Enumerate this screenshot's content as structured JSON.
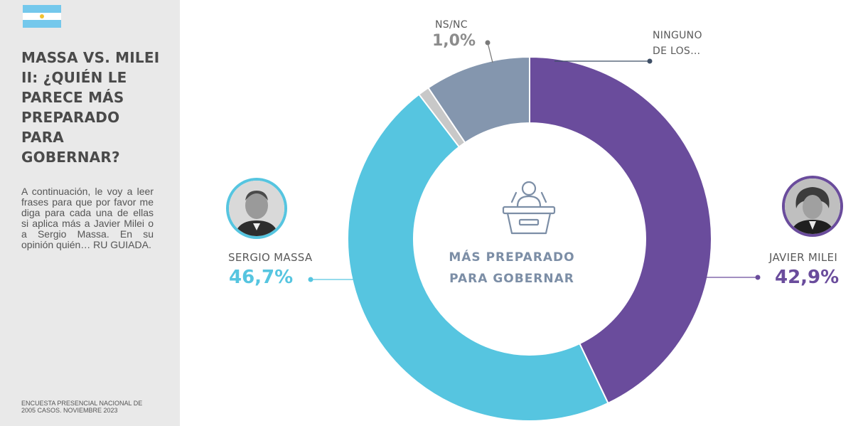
{
  "sidebar": {
    "title": "MASSA VS. MILEI\nII: ¿QUIÉN LE\nPARECE MÁS\nPREPARADO\nPARA\nGOBERNAR?",
    "description": "A continuación, le voy a leer frases para que por favor me diga para cada una de ellas si aplica más a Javier Milei o a Sergio Massa. En su opinión quién… RU GUIADA.",
    "source": "ENCUESTA PRESENCIAL NACIONAL DE\n2005 CASOS. NOVIEMBRE 2023"
  },
  "center_label": "MÁS PREPARADO\nPARA GOBERNAR",
  "labels": {
    "massa_name": "SERGIO MASSA",
    "massa_pct": "46,7%",
    "milei_name": "JAVIER MILEI",
    "milei_pct": "42,9%",
    "nsnc_name": "NS/NC",
    "nsnc_pct": "1,0%",
    "ninguno_line1": "NINGUNO",
    "ninguno_line2": "DE LOS…"
  },
  "colors": {
    "milei": "#6a4c9c",
    "massa": "#56c5e0",
    "ninguno": "#8496ae",
    "nsnc": "#c8c8c8"
  },
  "icons": [
    "argentina-flag-icon",
    "podium-speaker-icon",
    "massa-avatar",
    "milei-avatar"
  ],
  "chart_data": {
    "type": "pie",
    "donut": true,
    "categories": [
      "Javier Milei",
      "Sergio Massa",
      "NS/NC",
      "Ninguno de los…"
    ],
    "values": [
      42.9,
      46.7,
      1.0,
      9.4
    ],
    "value_labels": [
      "42,9%",
      "46,7%",
      "1,0%",
      ""
    ],
    "start_angle_deg": 0,
    "direction": "clockwise"
  }
}
